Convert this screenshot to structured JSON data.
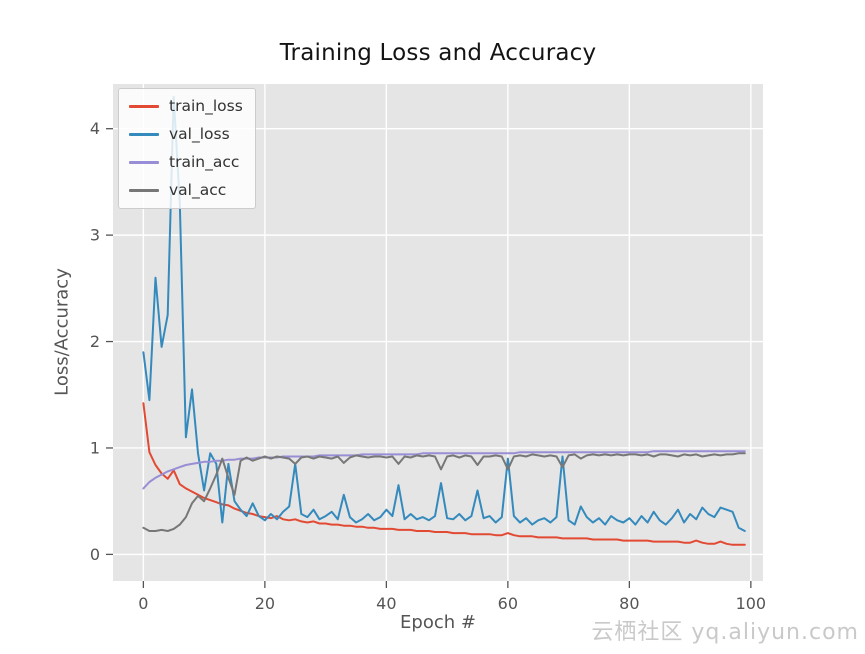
{
  "page": {
    "watermark": "云栖社区 yq.aliyun.com"
  },
  "chart_data": {
    "type": "line",
    "title": "Training Loss and Accuracy",
    "xlabel": "Epoch #",
    "ylabel": "Loss/Accuracy",
    "xlim": [
      -5,
      102
    ],
    "ylim": [
      -0.25,
      4.42
    ],
    "xticks": [
      0,
      20,
      40,
      60,
      80,
      100
    ],
    "yticks": [
      0,
      1,
      2,
      3,
      4
    ],
    "grid": true,
    "legend_position": "upper left",
    "plot_bg": "#E5E5E5",
    "grid_color": "#FFFFFF",
    "tick_color": "#555555",
    "x": [
      0,
      1,
      2,
      3,
      4,
      5,
      6,
      7,
      8,
      9,
      10,
      11,
      12,
      13,
      14,
      15,
      16,
      17,
      18,
      19,
      20,
      21,
      22,
      23,
      24,
      25,
      26,
      27,
      28,
      29,
      30,
      31,
      32,
      33,
      34,
      35,
      36,
      37,
      38,
      39,
      40,
      41,
      42,
      43,
      44,
      45,
      46,
      47,
      48,
      49,
      50,
      51,
      52,
      53,
      54,
      55,
      56,
      57,
      58,
      59,
      60,
      61,
      62,
      63,
      64,
      65,
      66,
      67,
      68,
      69,
      70,
      71,
      72,
      73,
      74,
      75,
      76,
      77,
      78,
      79,
      80,
      81,
      82,
      83,
      84,
      85,
      86,
      87,
      88,
      89,
      90,
      91,
      92,
      93,
      94,
      95,
      96,
      97,
      98,
      99
    ],
    "series": [
      {
        "name": "train_loss",
        "color": "#E24A33",
        "values": [
          1.42,
          0.96,
          0.84,
          0.76,
          0.71,
          0.79,
          0.66,
          0.62,
          0.59,
          0.56,
          0.53,
          0.51,
          0.49,
          0.47,
          0.46,
          0.43,
          0.41,
          0.39,
          0.38,
          0.36,
          0.35,
          0.34,
          0.36,
          0.33,
          0.32,
          0.33,
          0.31,
          0.3,
          0.31,
          0.29,
          0.29,
          0.28,
          0.28,
          0.27,
          0.27,
          0.26,
          0.26,
          0.25,
          0.25,
          0.24,
          0.24,
          0.24,
          0.23,
          0.23,
          0.23,
          0.22,
          0.22,
          0.22,
          0.21,
          0.21,
          0.21,
          0.2,
          0.2,
          0.2,
          0.19,
          0.19,
          0.19,
          0.19,
          0.18,
          0.18,
          0.2,
          0.18,
          0.17,
          0.17,
          0.17,
          0.16,
          0.16,
          0.16,
          0.16,
          0.15,
          0.15,
          0.15,
          0.15,
          0.15,
          0.14,
          0.14,
          0.14,
          0.14,
          0.14,
          0.13,
          0.13,
          0.13,
          0.13,
          0.13,
          0.12,
          0.12,
          0.12,
          0.12,
          0.12,
          0.11,
          0.11,
          0.13,
          0.11,
          0.1,
          0.1,
          0.12,
          0.1,
          0.09,
          0.09,
          0.09
        ]
      },
      {
        "name": "val_loss",
        "color": "#348ABD",
        "values": [
          1.9,
          1.45,
          2.6,
          1.95,
          2.25,
          4.3,
          3.3,
          1.1,
          1.55,
          0.95,
          0.6,
          0.95,
          0.85,
          0.3,
          0.85,
          0.5,
          0.42,
          0.36,
          0.48,
          0.36,
          0.32,
          0.38,
          0.33,
          0.4,
          0.45,
          0.85,
          0.38,
          0.35,
          0.42,
          0.33,
          0.36,
          0.4,
          0.33,
          0.56,
          0.35,
          0.3,
          0.33,
          0.38,
          0.32,
          0.35,
          0.42,
          0.36,
          0.65,
          0.33,
          0.38,
          0.33,
          0.35,
          0.32,
          0.36,
          0.67,
          0.34,
          0.33,
          0.38,
          0.32,
          0.36,
          0.6,
          0.34,
          0.36,
          0.3,
          0.35,
          0.9,
          0.36,
          0.3,
          0.34,
          0.28,
          0.32,
          0.34,
          0.3,
          0.35,
          0.92,
          0.32,
          0.28,
          0.45,
          0.35,
          0.3,
          0.34,
          0.28,
          0.36,
          0.32,
          0.3,
          0.34,
          0.28,
          0.36,
          0.3,
          0.4,
          0.32,
          0.28,
          0.34,
          0.42,
          0.3,
          0.38,
          0.33,
          0.44,
          0.38,
          0.35,
          0.44,
          0.42,
          0.4,
          0.25,
          0.22
        ]
      },
      {
        "name": "train_acc",
        "color": "#988ED5",
        "values": [
          0.62,
          0.68,
          0.72,
          0.75,
          0.78,
          0.8,
          0.82,
          0.84,
          0.85,
          0.86,
          0.87,
          0.87,
          0.88,
          0.88,
          0.89,
          0.89,
          0.9,
          0.9,
          0.9,
          0.91,
          0.91,
          0.91,
          0.91,
          0.92,
          0.92,
          0.92,
          0.92,
          0.92,
          0.92,
          0.93,
          0.93,
          0.93,
          0.93,
          0.93,
          0.93,
          0.93,
          0.94,
          0.94,
          0.94,
          0.94,
          0.94,
          0.94,
          0.94,
          0.94,
          0.94,
          0.94,
          0.95,
          0.95,
          0.95,
          0.95,
          0.95,
          0.95,
          0.95,
          0.95,
          0.95,
          0.95,
          0.95,
          0.95,
          0.95,
          0.95,
          0.95,
          0.95,
          0.96,
          0.96,
          0.96,
          0.96,
          0.96,
          0.96,
          0.96,
          0.96,
          0.96,
          0.96,
          0.96,
          0.96,
          0.96,
          0.96,
          0.96,
          0.96,
          0.96,
          0.96,
          0.96,
          0.96,
          0.96,
          0.96,
          0.97,
          0.97,
          0.97,
          0.97,
          0.97,
          0.97,
          0.97,
          0.97,
          0.97,
          0.97,
          0.97,
          0.97,
          0.97,
          0.97,
          0.97,
          0.97
        ]
      },
      {
        "name": "val_acc",
        "color": "#777777",
        "values": [
          0.25,
          0.22,
          0.22,
          0.23,
          0.22,
          0.24,
          0.28,
          0.35,
          0.48,
          0.55,
          0.5,
          0.62,
          0.75,
          0.9,
          0.72,
          0.56,
          0.88,
          0.91,
          0.88,
          0.9,
          0.92,
          0.9,
          0.92,
          0.91,
          0.9,
          0.85,
          0.91,
          0.92,
          0.9,
          0.92,
          0.91,
          0.9,
          0.92,
          0.86,
          0.91,
          0.93,
          0.92,
          0.91,
          0.92,
          0.92,
          0.91,
          0.92,
          0.85,
          0.92,
          0.91,
          0.93,
          0.92,
          0.93,
          0.92,
          0.8,
          0.92,
          0.93,
          0.91,
          0.93,
          0.92,
          0.84,
          0.92,
          0.92,
          0.93,
          0.92,
          0.8,
          0.92,
          0.93,
          0.92,
          0.94,
          0.93,
          0.92,
          0.93,
          0.92,
          0.82,
          0.93,
          0.94,
          0.9,
          0.93,
          0.94,
          0.93,
          0.94,
          0.93,
          0.94,
          0.93,
          0.94,
          0.94,
          0.93,
          0.94,
          0.92,
          0.94,
          0.94,
          0.93,
          0.92,
          0.94,
          0.93,
          0.94,
          0.92,
          0.93,
          0.94,
          0.93,
          0.94,
          0.94,
          0.95,
          0.95
        ]
      }
    ]
  }
}
